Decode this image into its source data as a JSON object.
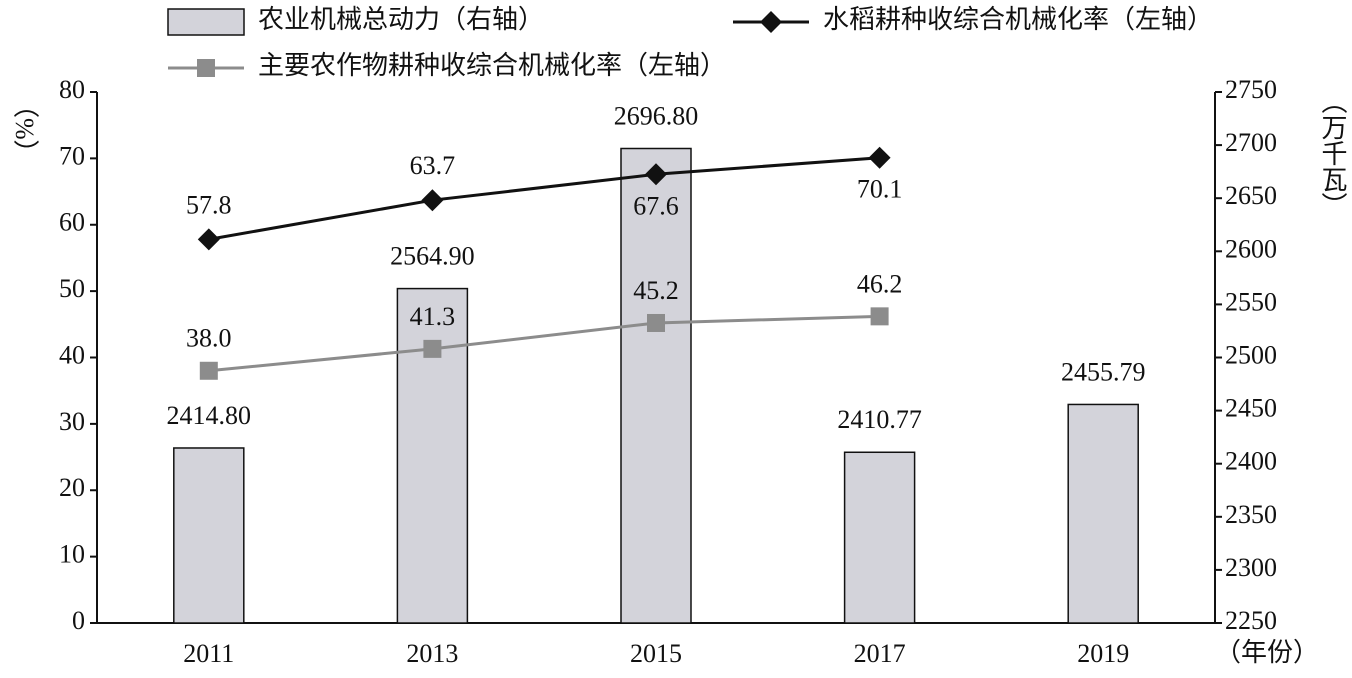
{
  "chart_data": {
    "type": "bar",
    "categories": [
      "2011",
      "2013",
      "2015",
      "2017",
      "2019"
    ],
    "series": [
      {
        "name": "农业机械总动力（右轴）",
        "type": "bar",
        "axis": "y2",
        "color": "#d3d3da",
        "values": [
          2414.8,
          2564.9,
          2696.8,
          2410.77,
          2455.79
        ],
        "value_labels": [
          "2414.80",
          "2564.90",
          "2696.80",
          "2410.77",
          "2455.79"
        ]
      },
      {
        "name": "水稻耕种收综合机械化率（左轴）",
        "type": "line",
        "marker": "diamond",
        "color": "#111111",
        "values": [
          57.8,
          63.7,
          67.6,
          70.1,
          null
        ],
        "value_labels": [
          "57.8",
          "63.7",
          "67.6",
          "70.1",
          null
        ]
      },
      {
        "name": "主要农作物耕种收综合机械化率（左轴）",
        "type": "line",
        "marker": "square",
        "color": "#8c8c8c",
        "values": [
          38.0,
          41.3,
          45.2,
          46.2,
          null
        ],
        "value_labels": [
          "38.0",
          "41.3",
          "45.2",
          "46.2",
          null
        ]
      }
    ],
    "y_label": "（%）",
    "y2_label": "（万千瓦）",
    "x_label": "（年份）",
    "ylim": [
      0,
      80
    ],
    "yticks": [
      0,
      10,
      20,
      30,
      40,
      50,
      60,
      70,
      80
    ],
    "y2lim": [
      2250,
      2750
    ],
    "y2ticks": [
      2250,
      2300,
      2350,
      2400,
      2450,
      2500,
      2550,
      2600,
      2650,
      2700,
      2750
    ]
  }
}
